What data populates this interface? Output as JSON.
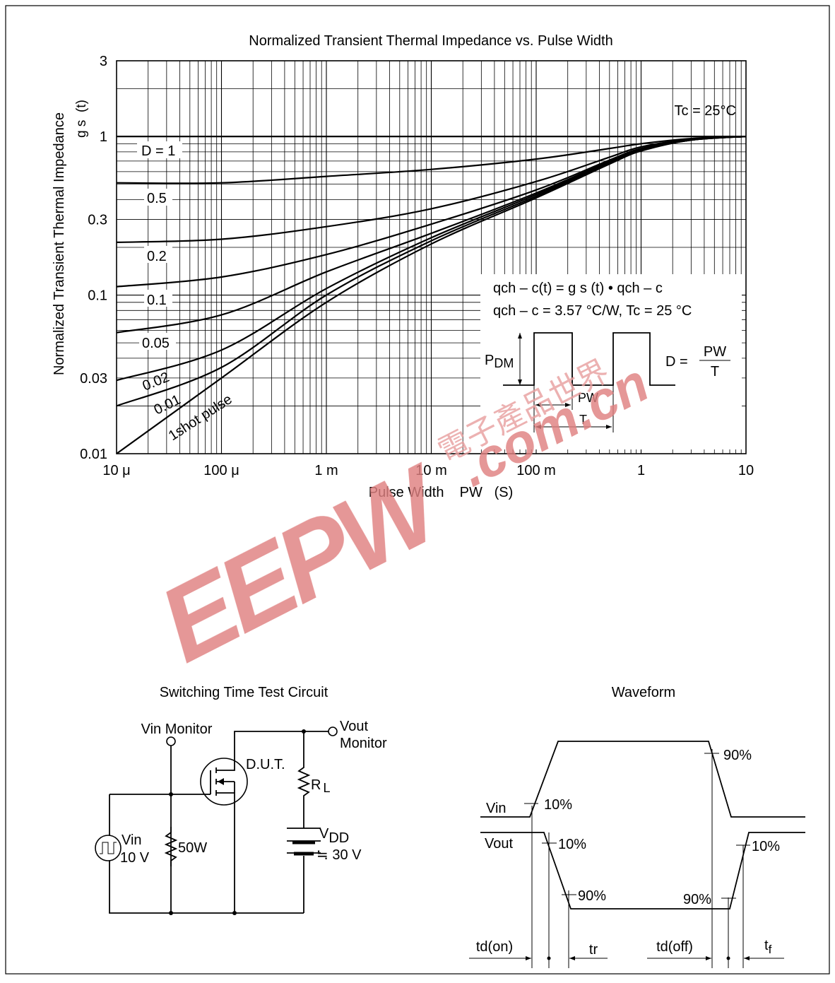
{
  "chart_data": {
    "type": "line",
    "title": "Normalized Transient Thermal Impedance vs. Pulse Width",
    "xlabel": "Pulse Width    PW   (S)",
    "ylabel": "Normalized Transient Thermal Impedance",
    "ylabel_symbol": "g s  (t)",
    "x_scale": "log",
    "y_scale": "log",
    "xlim": [
      1e-05,
      10
    ],
    "ylim": [
      0.01,
      3
    ],
    "x_ticks": [
      {
        "value": 1e-05,
        "label": "10 μ"
      },
      {
        "value": 0.0001,
        "label": "100 μ"
      },
      {
        "value": 0.001,
        "label": "1 m"
      },
      {
        "value": 0.01,
        "label": "10 m"
      },
      {
        "value": 0.1,
        "label": "100 m"
      },
      {
        "value": 1,
        "label": "1"
      },
      {
        "value": 10,
        "label": "10"
      }
    ],
    "y_ticks": [
      {
        "value": 3,
        "label": "3"
      },
      {
        "value": 1,
        "label": "1"
      },
      {
        "value": 0.3,
        "label": "0.3"
      },
      {
        "value": 0.1,
        "label": "0.1"
      },
      {
        "value": 0.03,
        "label": "0.03"
      },
      {
        "value": 0.01,
        "label": "0.01"
      }
    ],
    "grid": true,
    "annotation_tc": "Tc = 25°C",
    "series": [
      {
        "name": "D = 1",
        "x": [
          1e-05,
          10
        ],
        "y": [
          1,
          1
        ]
      },
      {
        "name": "0.5",
        "x": [
          1e-05,
          0.0001,
          0.001,
          0.01,
          0.1,
          0.5,
          1,
          3,
          10
        ],
        "y": [
          0.51,
          0.51,
          0.56,
          0.62,
          0.72,
          0.84,
          0.9,
          0.97,
          1
        ]
      },
      {
        "name": "0.2",
        "x": [
          1e-05,
          0.0001,
          0.001,
          0.01,
          0.1,
          0.5,
          1,
          3,
          10
        ],
        "y": [
          0.215,
          0.225,
          0.27,
          0.35,
          0.52,
          0.74,
          0.86,
          0.96,
          1
        ]
      },
      {
        "name": "0.1",
        "x": [
          1e-05,
          0.0001,
          0.001,
          0.01,
          0.1,
          0.5,
          1,
          3,
          10
        ],
        "y": [
          0.113,
          0.13,
          0.18,
          0.28,
          0.46,
          0.71,
          0.84,
          0.96,
          1
        ]
      },
      {
        "name": "0.05",
        "x": [
          1e-05,
          0.0001,
          0.001,
          0.01,
          0.1,
          0.5,
          1,
          3,
          10
        ],
        "y": [
          0.058,
          0.075,
          0.14,
          0.245,
          0.44,
          0.7,
          0.83,
          0.95,
          1
        ]
      },
      {
        "name": "0.02",
        "x": [
          1e-05,
          0.0001,
          0.001,
          0.01,
          0.1,
          0.5,
          1,
          3,
          10
        ],
        "y": [
          0.029,
          0.045,
          0.11,
          0.23,
          0.43,
          0.69,
          0.82,
          0.95,
          1
        ]
      },
      {
        "name": "0.01",
        "x": [
          1e-05,
          0.0001,
          0.001,
          0.01,
          0.1,
          0.5,
          1,
          3,
          10
        ],
        "y": [
          0.02,
          0.035,
          0.1,
          0.22,
          0.42,
          0.68,
          0.82,
          0.95,
          1
        ]
      },
      {
        "name": "1shot pulse",
        "x": [
          1e-05,
          0.0001,
          0.001,
          0.01,
          0.1,
          0.5,
          1,
          3,
          10
        ],
        "y": [
          0.01,
          0.03,
          0.09,
          0.21,
          0.41,
          0.67,
          0.81,
          0.95,
          1
        ]
      }
    ],
    "formula_line1": "qch – c(t) = g s (t) • qch – c",
    "formula_line2": "qch – c = 3.57 °C/W, Tc = 25 °C",
    "pulse_diagram": {
      "pdm": "P",
      "pdm_sub": "DM",
      "pw": "PW",
      "t": "T",
      "d_label": "D =",
      "d_num": "PW",
      "d_den": "T"
    }
  },
  "watermark": {
    "brand": "EEPW",
    "domain": ".com.cn",
    "cn": "電子產品世界",
    "color": "#e08080"
  },
  "circuit": {
    "title": "Switching Time Test Circuit",
    "vin_monitor": "Vin Monitor",
    "vout_monitor_1": "Vout",
    "vout_monitor_2": "Monitor",
    "dut": "D.U.T.",
    "rl": "R",
    "rl_sub": "L",
    "vdd": "V",
    "vdd_sub": "DD",
    "vdd_value": "≒ 30 V",
    "vin": "Vin",
    "vin_value": "10 V",
    "r50": "50W"
  },
  "waveform": {
    "title": "Waveform",
    "vin": "Vin",
    "vout": "Vout",
    "p90_top": "90%",
    "p10_vin": "10%",
    "p10_vout_l": "10%",
    "p90_vout_l": "90%",
    "p90_vout_r": "90%",
    "p10_vout_r": "10%",
    "td_on": "td(on)",
    "tr": "tr",
    "td_off": "td(off)",
    "tf": "t",
    "tf_sub": "f"
  }
}
